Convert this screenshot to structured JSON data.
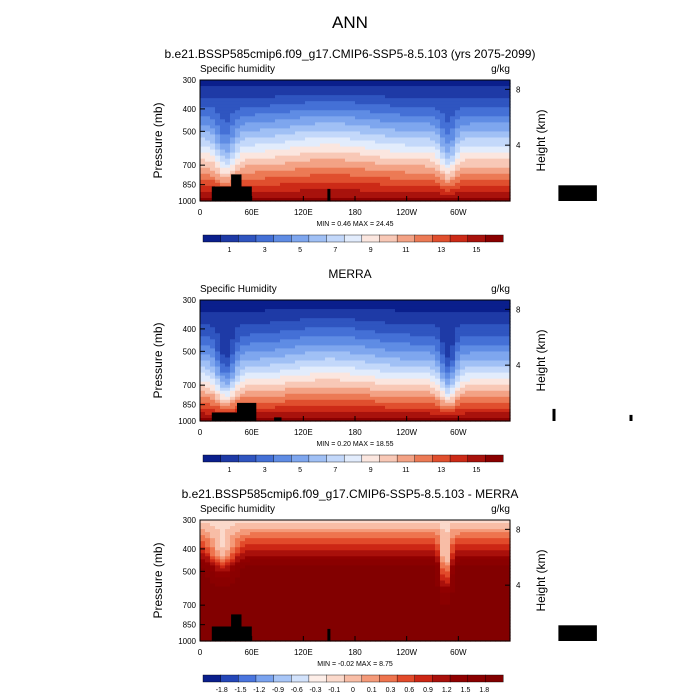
{
  "figure": {
    "title": "ANN"
  },
  "colors": {
    "blue_red_16": [
      "#0a1f8c",
      "#1e3aa6",
      "#2f55c0",
      "#4470d6",
      "#5f8ce4",
      "#7ea6ee",
      "#a0c0f5",
      "#c3d8fa",
      "#e2ecfc",
      "#fbe6df",
      "#f8c8b6",
      "#f3a285",
      "#ec7a55",
      "#e04f2e",
      "#cc2a17",
      "#a8120c",
      "#8a0000"
    ],
    "diff_17": [
      "#0a1f8c",
      "#2447b8",
      "#4a75de",
      "#7aa3ef",
      "#a8c6f7",
      "#d2e2fb",
      "#fdeee8",
      "#fbd9cb",
      "#f8bda6",
      "#f49a79",
      "#ee744e",
      "#e24a2a",
      "#cc2614",
      "#a9100b",
      "#900000",
      "#8a0000",
      "#820000"
    ]
  },
  "chart_data": [
    {
      "type": "heatmap",
      "title": "b.e21.BSSP585cmip6.f09_g17.CMIP6-SSP5-8.5.103 (yrs 2075-2099)",
      "left_label": "Specific humidity",
      "right_label": "g/kg",
      "ylabel": "Pressure (mb)",
      "ylabel_right": "Height (km)",
      "y_ticks": [
        "300",
        "400",
        "500",
        "700",
        "850",
        "1000"
      ],
      "y_ticks_right": [
        "8",
        "4"
      ],
      "x_ticks": [
        "0",
        "60E",
        "120E",
        "180",
        "120W",
        "60W"
      ],
      "stats": "MIN =   0.46  MAX =  24.45",
      "colorbar_labels": [
        "1",
        "3",
        "5",
        "7",
        "9",
        "11",
        "13",
        "15"
      ],
      "xlim": [
        0,
        360
      ],
      "ylim": [
        1000,
        300
      ]
    },
    {
      "type": "heatmap",
      "title": "MERRA",
      "left_label": "Specific Humidity",
      "right_label": "g/kg",
      "ylabel": "Pressure (mb)",
      "ylabel_right": "Height (km)",
      "y_ticks": [
        "300",
        "400",
        "500",
        "700",
        "850",
        "1000"
      ],
      "y_ticks_right": [
        "8",
        "4"
      ],
      "x_ticks": [
        "0",
        "60E",
        "120E",
        "180",
        "120W",
        "60W"
      ],
      "stats": "MIN =   0.20  MAX =  18.55",
      "colorbar_labels": [
        "1",
        "3",
        "5",
        "7",
        "9",
        "11",
        "13",
        "15"
      ],
      "xlim": [
        0,
        360
      ],
      "ylim": [
        1000,
        300
      ]
    },
    {
      "type": "heatmap",
      "title": "b.e21.BSSP585cmip6.f09_g17.CMIP6-SSP5-8.5.103 - MERRA",
      "left_label": "Specific humidity",
      "right_label": "g/kg",
      "ylabel": "Pressure (mb)",
      "ylabel_right": "Height (km)",
      "y_ticks": [
        "300",
        "400",
        "500",
        "700",
        "850",
        "1000"
      ],
      "y_ticks_right": [
        "8",
        "4"
      ],
      "x_ticks": [
        "0",
        "60E",
        "120E",
        "180",
        "120W",
        "60W"
      ],
      "stats": "MIN =  -0.02  MAX =   8.75",
      "colorbar_labels": [
        "-1.8",
        "-1.5",
        "-1.2",
        "-0.9",
        "-0.6",
        "-0.3",
        "-0.1",
        "0",
        "0.1",
        "0.3",
        "0.6",
        "0.9",
        "1.2",
        "1.5",
        "1.8"
      ],
      "xlim": [
        0,
        360
      ],
      "ylim": [
        1000,
        300
      ]
    }
  ]
}
